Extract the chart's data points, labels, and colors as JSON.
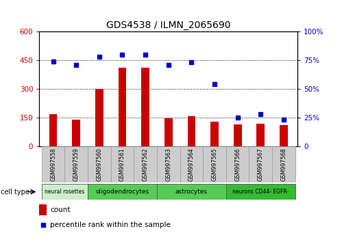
{
  "title": "GDS4538 / ILMN_2065690",
  "samples": [
    "GSM997558",
    "GSM997559",
    "GSM997560",
    "GSM997561",
    "GSM997562",
    "GSM997563",
    "GSM997564",
    "GSM997565",
    "GSM997566",
    "GSM997567",
    "GSM997568"
  ],
  "counts": [
    170,
    140,
    300,
    410,
    410,
    148,
    158,
    128,
    115,
    118,
    110
  ],
  "percentiles": [
    74,
    71,
    78,
    80,
    80,
    71,
    73,
    54,
    25,
    28,
    23
  ],
  "ylim_left": [
    0,
    600
  ],
  "ylim_right": [
    0,
    100
  ],
  "yticks_left": [
    0,
    150,
    300,
    450,
    600
  ],
  "yticks_right": [
    0,
    25,
    50,
    75,
    100
  ],
  "bar_color": "#cc0000",
  "dot_color": "#0000cc",
  "cell_types": [
    {
      "label": "neural rosettes",
      "start": 0,
      "end": 2,
      "color": "#cceecc"
    },
    {
      "label": "oligodendrocytes",
      "start": 2,
      "end": 5,
      "color": "#55cc55"
    },
    {
      "label": "astrocytes",
      "start": 5,
      "end": 8,
      "color": "#55cc55"
    },
    {
      "label": "neurons CD44- EGFR-",
      "start": 8,
      "end": 11,
      "color": "#33bb33"
    }
  ],
  "bg_color": "#ffffff",
  "tick_color_left": "#cc0000",
  "tick_color_right": "#0000cc",
  "sample_box_color": "#cccccc",
  "sample_box_edge": "#999999"
}
